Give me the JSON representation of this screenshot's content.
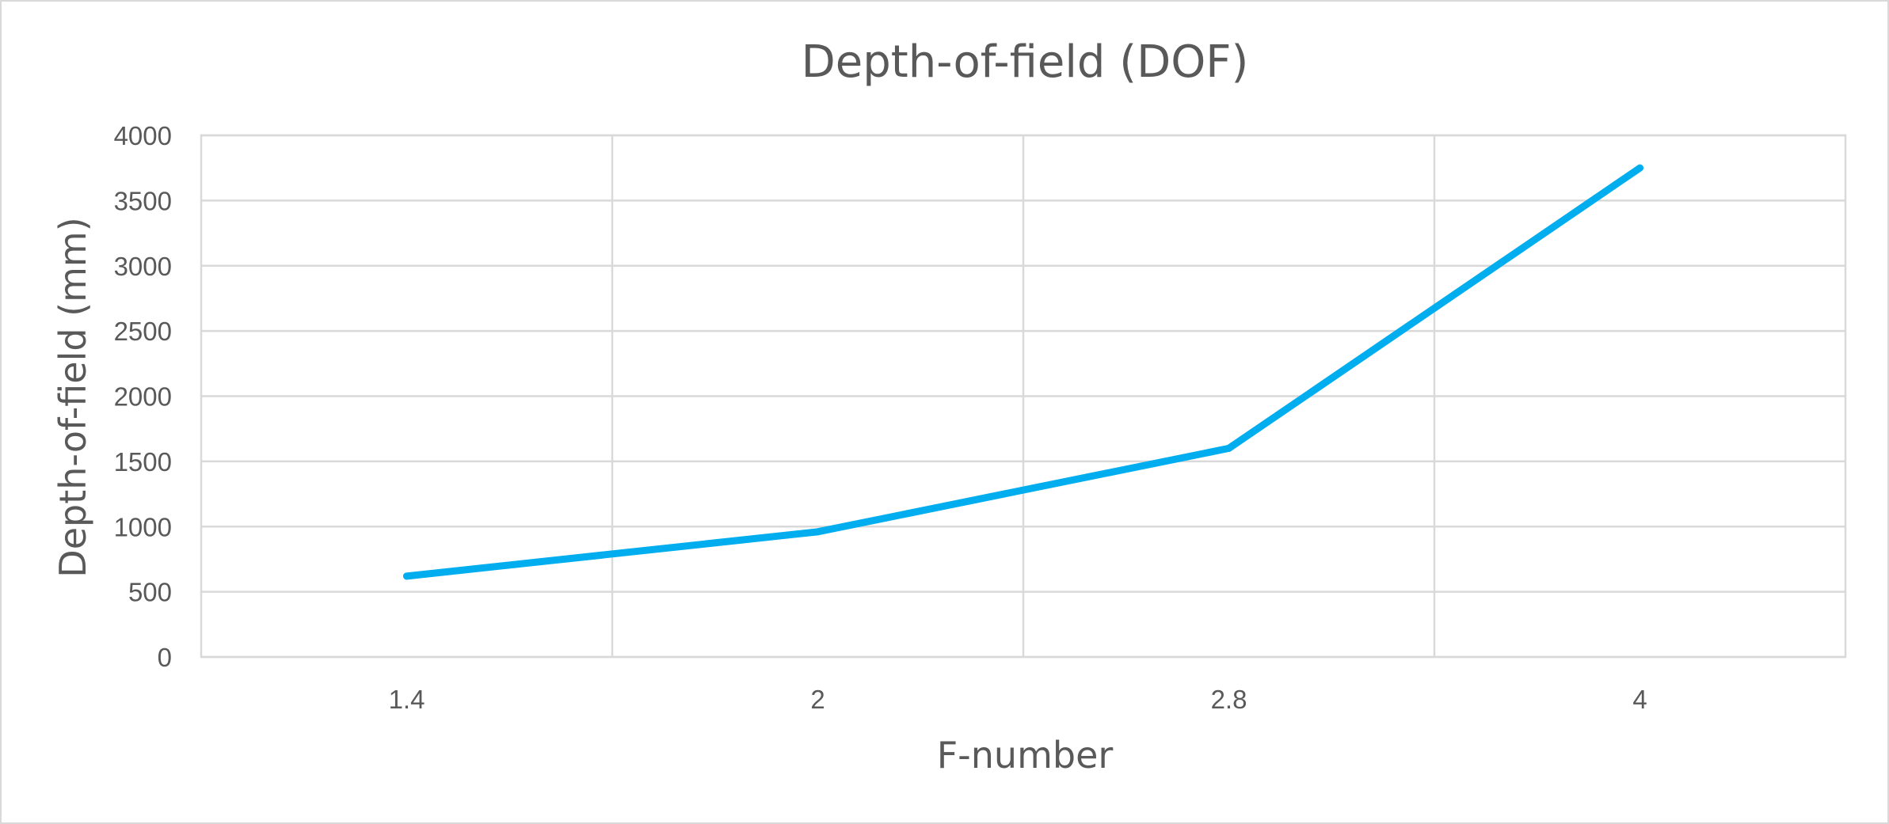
{
  "chart_data": {
    "type": "line",
    "title": "Depth-of-field (DOF)",
    "xlabel": "F-number",
    "ylabel": "Depth-of-field (mm)",
    "categories": [
      "1.4",
      "2",
      "2.8",
      "4"
    ],
    "series": [
      {
        "values": [
          620,
          960,
          1600,
          3750
        ],
        "color": "#00aeef"
      }
    ],
    "ylim": [
      0,
      4000
    ],
    "yticks": [
      0,
      500,
      1000,
      1500,
      2000,
      2500,
      3000,
      3500,
      4000
    ],
    "grid": true,
    "legend": "none"
  }
}
